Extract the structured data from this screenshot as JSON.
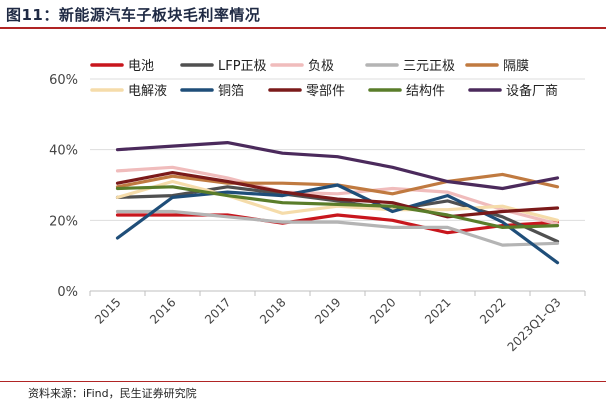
{
  "header": {
    "title": "图11：新能源汽车子板块毛利率情况"
  },
  "footer": {
    "source": "资料来源：iFind，民生证券研究院"
  },
  "chart_data": {
    "type": "line",
    "title": "",
    "xlabel": "",
    "ylabel": "",
    "categories": [
      "2015",
      "2016",
      "2017",
      "2018",
      "2019",
      "2020",
      "2021",
      "2022",
      "2023Q1-Q3"
    ],
    "ylim": [
      0,
      60
    ],
    "yticks": [
      0,
      20,
      40,
      60
    ],
    "ytick_labels": [
      "0%",
      "20%",
      "40%",
      "60%"
    ],
    "legend_position": "top",
    "series": [
      {
        "name": "电池",
        "color": "#c8161d",
        "values": [
          21.5,
          21.5,
          21.5,
          19.2,
          21.5,
          20.0,
          16.5,
          18.5,
          19.5
        ]
      },
      {
        "name": "LFP正极",
        "color": "#505050",
        "values": [
          26.5,
          27.0,
          29.5,
          27.5,
          25.5,
          23.0,
          25.5,
          21.0,
          14.0
        ]
      },
      {
        "name": "负极",
        "color": "#f0bcbc",
        "values": [
          34.0,
          35.0,
          32.0,
          28.0,
          27.5,
          29.0,
          28.0,
          23.0,
          19.0
        ]
      },
      {
        "name": "三元正极",
        "color": "#b4b4b4",
        "values": [
          22.5,
          22.5,
          21.0,
          19.5,
          19.5,
          18.0,
          18.0,
          13.0,
          13.5
        ]
      },
      {
        "name": "隔膜",
        "color": "#c07a40",
        "values": [
          29.5,
          32.5,
          30.5,
          30.5,
          30.0,
          27.5,
          31.0,
          33.0,
          29.5
        ]
      },
      {
        "name": "电解液",
        "color": "#f5dcaa",
        "values": [
          26.5,
          31.0,
          27.0,
          22.0,
          24.0,
          23.0,
          23.0,
          24.0,
          20.0
        ]
      },
      {
        "name": "铜箔",
        "color": "#1f4e79",
        "values": [
          15.0,
          26.5,
          28.0,
          27.0,
          30.0,
          22.5,
          27.0,
          19.5,
          8.0
        ]
      },
      {
        "name": "零部件",
        "color": "#7b1a1a",
        "values": [
          30.5,
          33.5,
          31.0,
          28.0,
          26.0,
          25.0,
          21.0,
          22.5,
          23.5
        ]
      },
      {
        "name": "结构件",
        "color": "#5a7d2a",
        "values": [
          29.0,
          29.5,
          27.0,
          25.0,
          24.5,
          24.0,
          21.5,
          18.0,
          18.5
        ]
      },
      {
        "name": "设备厂商",
        "color": "#4b2a5c",
        "values": [
          40.0,
          41.0,
          42.0,
          39.0,
          38.0,
          35.0,
          31.0,
          29.0,
          32.0
        ]
      }
    ]
  }
}
